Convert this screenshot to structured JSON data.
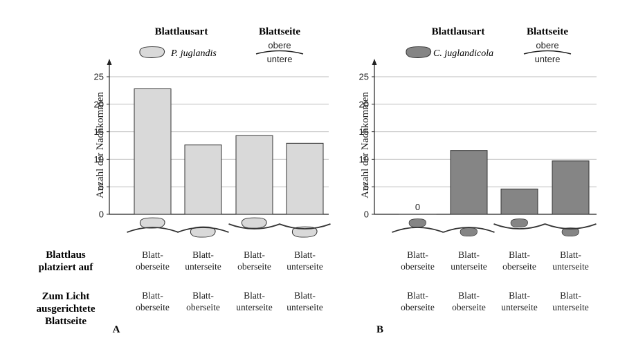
{
  "headers": {
    "aphid_type": "Blattlausart",
    "leaf_side": "Blattseite",
    "upper": "obere",
    "lower": "untere"
  },
  "row_labels": {
    "placed_on": [
      "Blattlaus",
      "platziert auf"
    ],
    "facing_light": [
      "Zum Licht",
      "ausgerichtete",
      "Blattseite"
    ]
  },
  "colors": {
    "panel_a_bar": "#d9d9d9",
    "panel_b_bar": "#858585",
    "gridline": "#bdbdbd",
    "outline": "#333333"
  },
  "chart_data": [
    {
      "type": "bar",
      "panel": "A",
      "species": "P. juglandis",
      "ylabel": "Anzahl der Nachkommen",
      "ylim": [
        0,
        25
      ],
      "yticks": [
        0,
        5,
        10,
        15,
        20,
        25
      ],
      "grid": true,
      "values": [
        22.8,
        12.6,
        14.3,
        12.9
      ],
      "data_labels": [
        "",
        "",
        "",
        ""
      ],
      "placed_on": [
        [
          "Blatt-",
          "oberseite"
        ],
        [
          "Blatt-",
          "unterseite"
        ],
        [
          "Blatt-",
          "oberseite"
        ],
        [
          "Blatt-",
          "unterseite"
        ]
      ],
      "facing_light": [
        [
          "Blatt-",
          "oberseite"
        ],
        [
          "Blatt-",
          "oberseite"
        ],
        [
          "Blatt-",
          "unterseite"
        ],
        [
          "Blatt-",
          "unterseite"
        ]
      ]
    },
    {
      "type": "bar",
      "panel": "B",
      "species": "C. juglandicola",
      "ylabel": "Anzahl der Nachkommen",
      "ylim": [
        0,
        25
      ],
      "yticks": [
        0,
        5,
        10,
        15,
        20,
        25
      ],
      "grid": true,
      "values": [
        0,
        11.6,
        4.6,
        9.7
      ],
      "data_labels": [
        "0",
        "",
        "",
        ""
      ],
      "placed_on": [
        [
          "Blatt-",
          "oberseite"
        ],
        [
          "Blatt-",
          "unterseite"
        ],
        [
          "Blatt-",
          "oberseite"
        ],
        [
          "Blatt-",
          "unterseite"
        ]
      ],
      "facing_light": [
        [
          "Blatt-",
          "oberseite"
        ],
        [
          "Blatt-",
          "oberseite"
        ],
        [
          "Blatt-",
          "unterseite"
        ],
        [
          "Blatt-",
          "unterseite"
        ]
      ]
    }
  ]
}
